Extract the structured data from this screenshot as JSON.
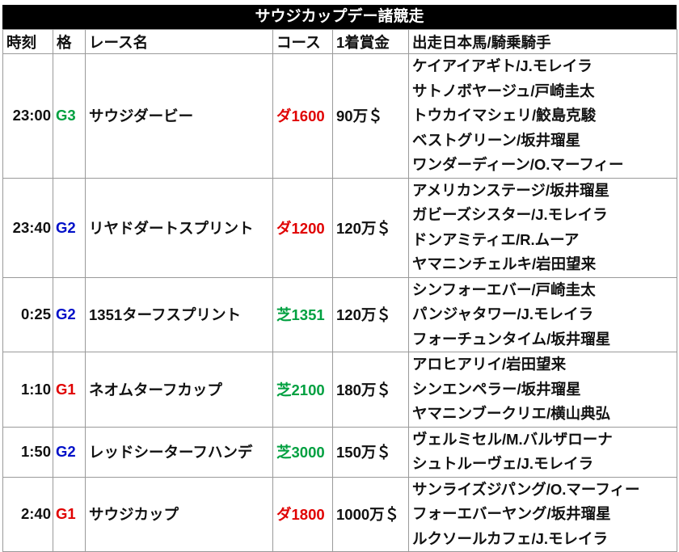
{
  "title": "サウジカップデー諸競走",
  "headers": [
    "時刻",
    "格",
    "レース名",
    "コース",
    "1着賞金",
    "出走日本馬/騎乗騎手"
  ],
  "colors": {
    "G1": "#e00000",
    "G2": "#0010c8",
    "G3": "#00a040",
    "dirt": "#e00000",
    "turf": "#00a040"
  },
  "races": [
    {
      "time": "23:00",
      "grade": "G3",
      "name": "サウジダービー",
      "course": "ダ1600",
      "surface": "dirt",
      "prize": "90万＄",
      "horses": [
        "ケイアイアギト/J.モレイラ",
        "サトノボヤージュ/戸崎圭太",
        "トウカイマシェリ/鮫島克駿",
        "ベストグリーン/坂井瑠星",
        "ワンダーディーン/O.マーフィー"
      ]
    },
    {
      "time": "23:40",
      "grade": "G2",
      "name": "リヤドダートスプリント",
      "course": "ダ1200",
      "surface": "dirt",
      "prize": "120万＄",
      "horses": [
        "アメリカンステージ/坂井瑠星",
        "ガビーズシスター/J.モレイラ",
        "ドンアミティエ/R.ムーア",
        "ヤマニンチェルキ/岩田望来"
      ]
    },
    {
      "time": "0:25",
      "grade": "G2",
      "name": "1351ターフスプリント",
      "course": "芝1351",
      "surface": "turf",
      "prize": "120万＄",
      "horses": [
        "シンフォーエバー/戸崎圭太",
        "パンジャタワー/J.モレイラ",
        "フォーチュンタイム/坂井瑠星"
      ]
    },
    {
      "time": "1:10",
      "grade": "G1",
      "name": "ネオムターフカップ",
      "course": "芝2100",
      "surface": "turf",
      "prize": "180万＄",
      "horses": [
        "アロヒアリイ/岩田望来",
        "シンエンペラー/坂井瑠星",
        "ヤマニンブークリエ/横山典弘"
      ]
    },
    {
      "time": "1:50",
      "grade": "G2",
      "name": "レッドシーターフハンデ",
      "course": "芝3000",
      "surface": "turf",
      "prize": "150万＄",
      "horses": [
        "ヴェルミセル/M.バルザローナ",
        "シュトルーヴェ/J.モレイラ"
      ]
    },
    {
      "time": "2:40",
      "grade": "G1",
      "name": "サウジカップ",
      "course": "ダ1800",
      "surface": "dirt",
      "prize": "1000万＄",
      "horses": [
        "サンライズジパング/O.マーフィー",
        "フォーエバーヤング/坂井瑠星",
        "ルクソールカフェ/J.モレイラ"
      ]
    }
  ]
}
